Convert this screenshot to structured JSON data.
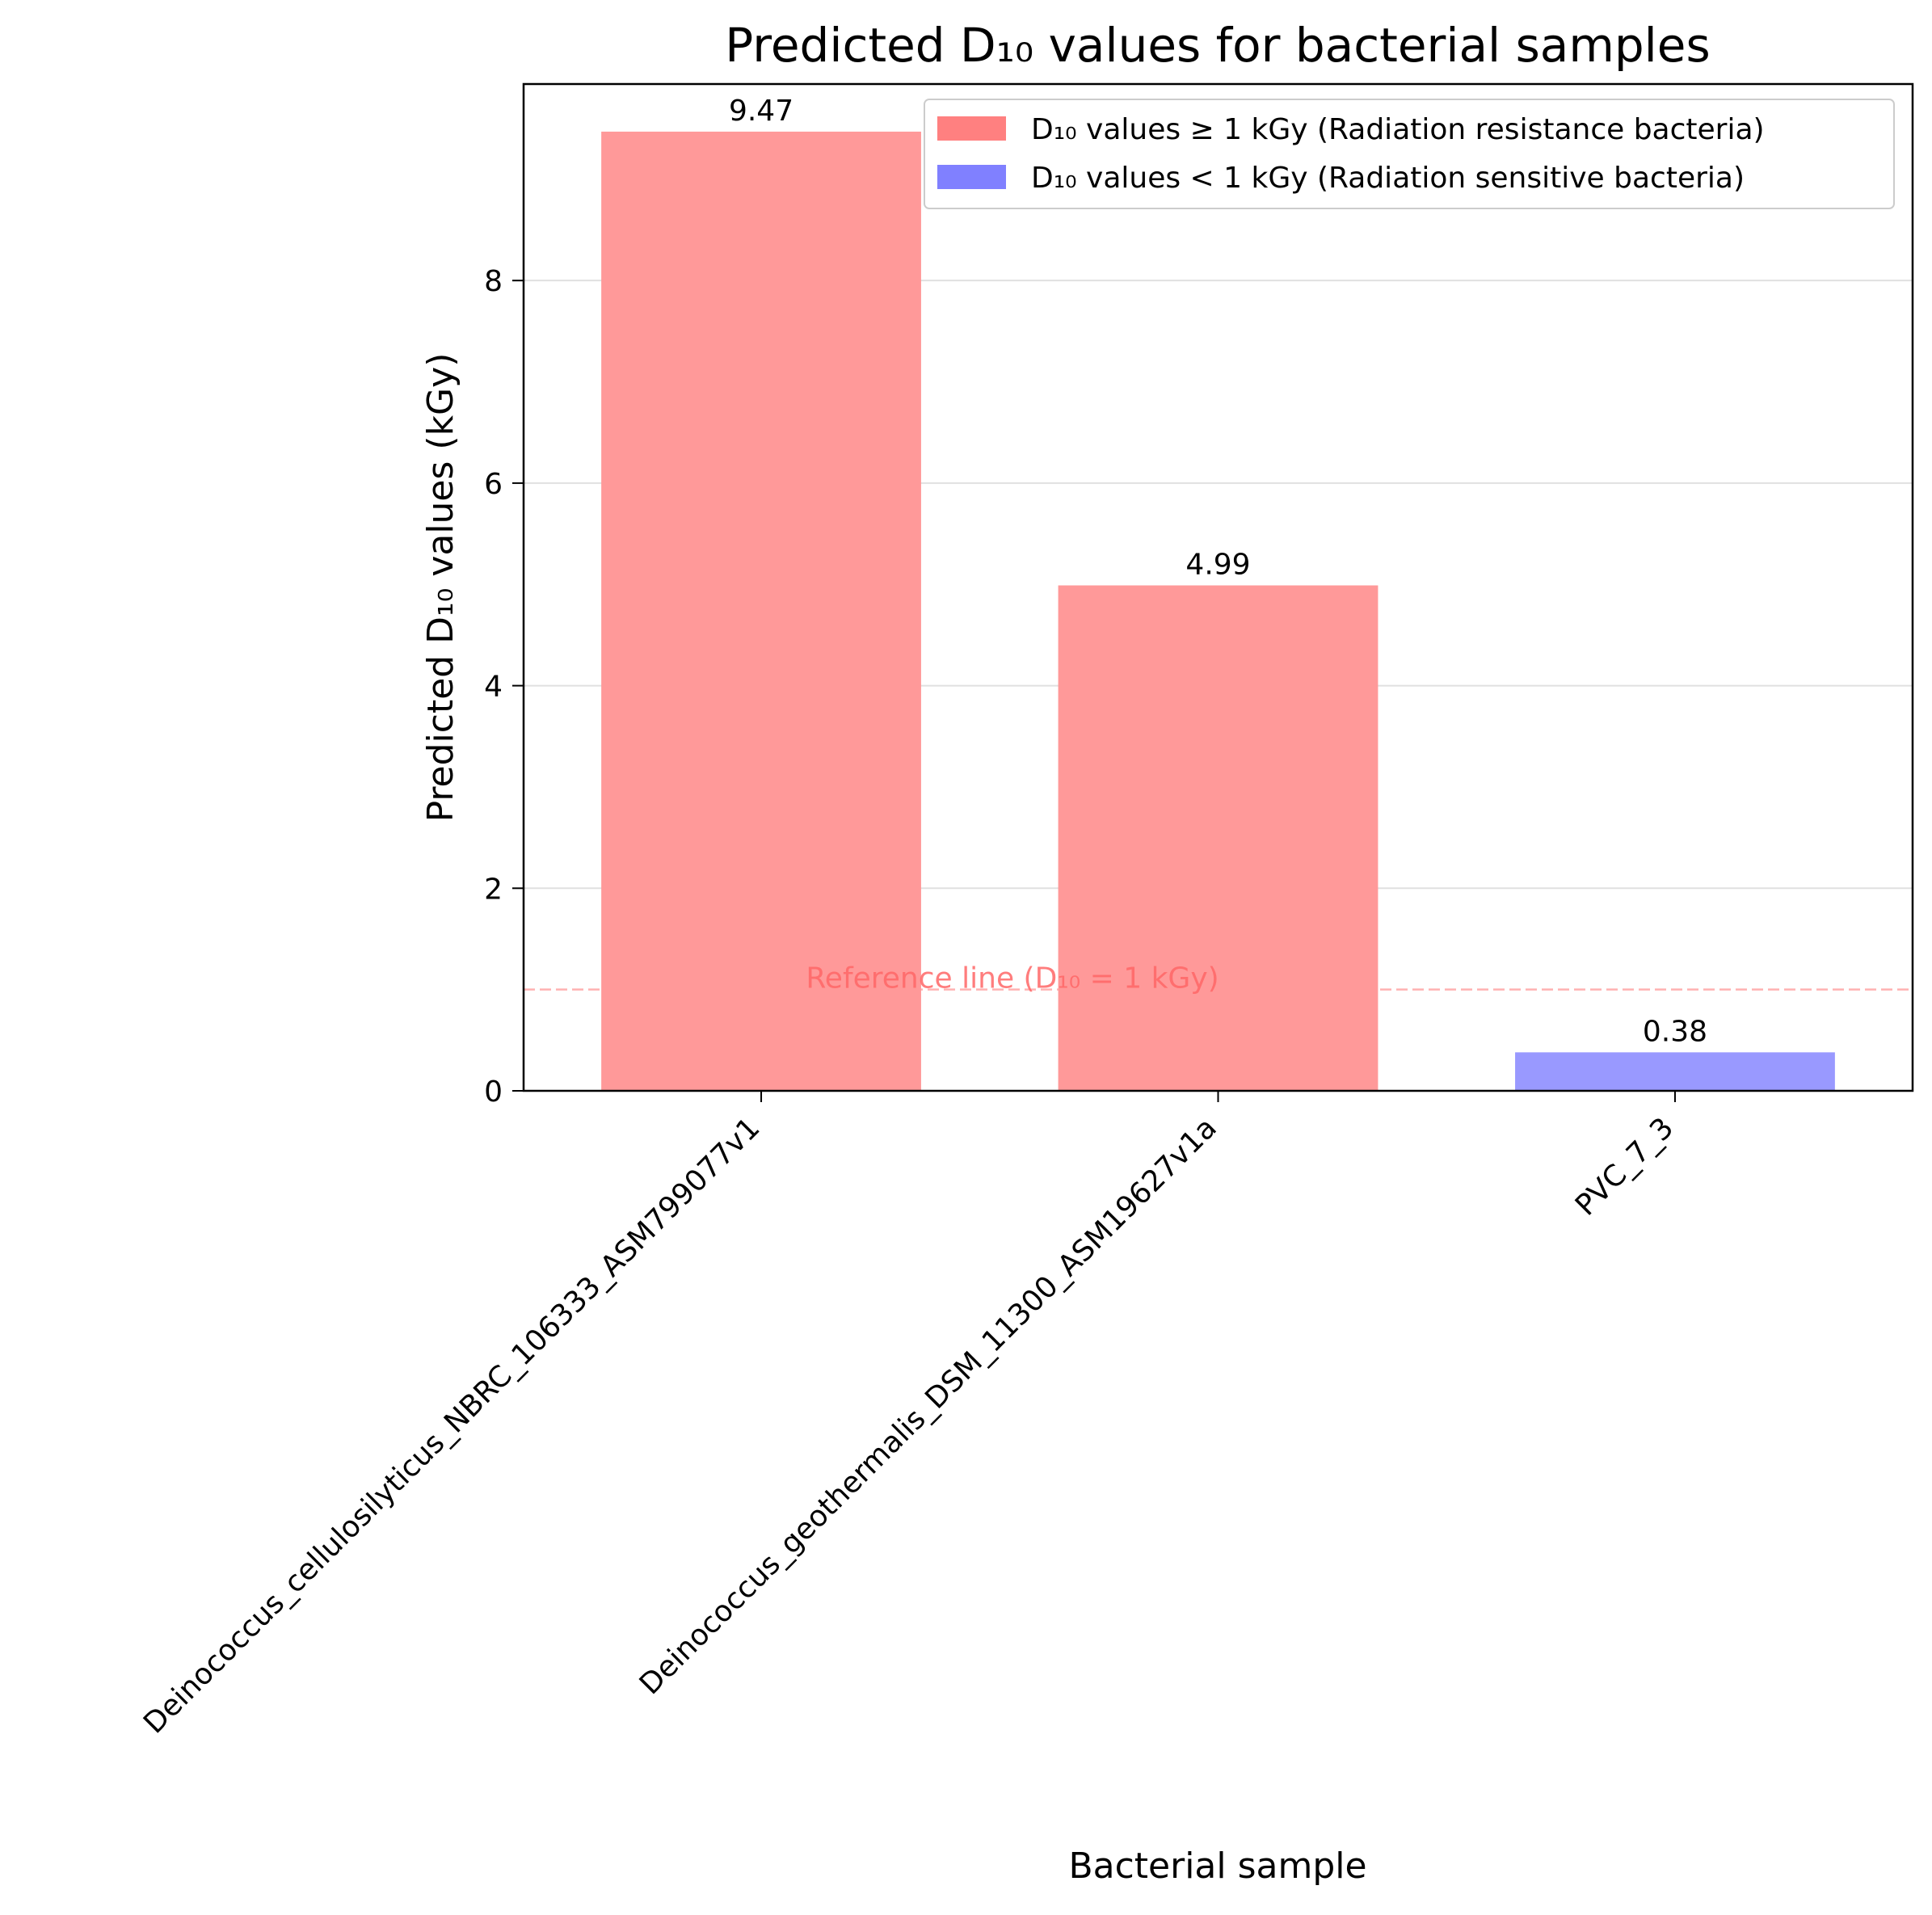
{
  "chart_data": {
    "type": "bar",
    "title": "Predicted D₁₀ values for bacterial samples",
    "xlabel": "Bacterial sample",
    "ylabel": "Predicted D₁₀ values (kGy)",
    "categories": [
      "Deinococcus_cellulosilyticus_NBRC_106333_ASM799077v1",
      "Deinococcus_geothermalis_DSM_11300_ASM19627v1a",
      "PVC_7_3"
    ],
    "values": [
      9.47,
      4.99,
      0.38
    ],
    "data_labels": [
      "9.47",
      "4.99",
      "0.38"
    ],
    "bar_groups": [
      "resistant",
      "resistant",
      "sensitive"
    ],
    "ylim": [
      0,
      9.94
    ],
    "yticks": [
      0,
      2,
      4,
      6,
      8
    ],
    "ytick_labels": [
      "0",
      "2",
      "4",
      "6",
      "8"
    ],
    "grid": "y",
    "legend_position": "top-right",
    "legend": [
      {
        "group": "resistant",
        "label": "D₁₀ values ≥ 1 kGy (Radiation resistance bacteria)",
        "color": "#ff8080"
      },
      {
        "group": "sensitive",
        "label": "D₁₀ values < 1 kGy (Radiation sensitive bacteria)",
        "color": "#8080ff"
      }
    ],
    "colors": {
      "resistant": "#ff9999",
      "sensitive": "#9999ff",
      "reference": "#ff6666"
    },
    "reference_line": {
      "y": 1,
      "label": "Reference line (D₁₀ = 1 kGy)"
    }
  }
}
